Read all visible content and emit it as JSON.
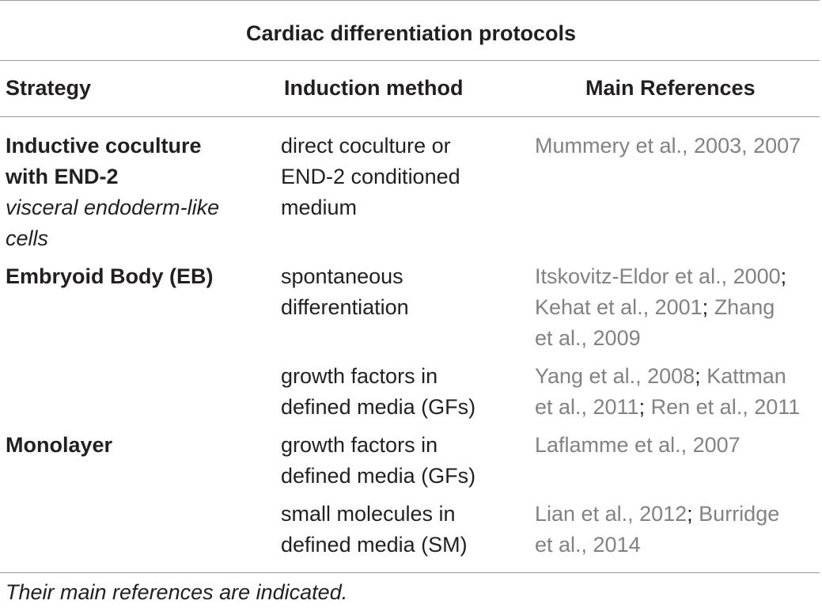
{
  "table": {
    "title": "Cardiac differentiation protocols",
    "columns": [
      "Strategy",
      "Induction method",
      "Main References"
    ],
    "rows": [
      {
        "strategy": {
          "name_lines": [
            "Inductive coculture",
            "with END-2"
          ],
          "subtitle_lines": [
            "visceral endoderm-like",
            "cells"
          ]
        },
        "method_lines": [
          "direct coculture or",
          "END-2 conditioned",
          "medium"
        ],
        "ref_lines": [
          [
            "Mummery et al., 2003, 2007"
          ]
        ]
      },
      {
        "strategy": {
          "name_lines": [
            "Embryoid Body (EB)"
          ]
        },
        "method_lines": [
          "spontaneous",
          "differentiation"
        ],
        "ref_lines": [
          [
            "Itskovitz-Eldor et al., 2000",
            ";"
          ],
          [
            "Kehat et al., 2001",
            "; ",
            "Zhang"
          ],
          [
            "et al., 2009"
          ]
        ]
      },
      {
        "strategy": {
          "name_lines": []
        },
        "method_lines": [
          "growth factors in",
          "defined media (GFs)"
        ],
        "ref_lines": [
          [
            "Yang et al., 2008",
            "; ",
            "Kattman"
          ],
          [
            "et al., 2011",
            "; ",
            "Ren et al., 2011"
          ]
        ]
      },
      {
        "strategy": {
          "name_lines": [
            "Monolayer"
          ]
        },
        "method_lines": [
          "growth factors in",
          "defined media (GFs)"
        ],
        "ref_lines": [
          [
            "Laflamme et al., 2007"
          ]
        ]
      },
      {
        "strategy": {
          "name_lines": []
        },
        "method_lines": [
          "small molecules in",
          "defined media (SM)"
        ],
        "ref_lines": [
          [
            "Lian et al., 2012",
            "; ",
            "Burridge"
          ],
          [
            "et al., 2014"
          ]
        ]
      }
    ],
    "footnote": "Their main references are indicated."
  },
  "colors": {
    "text": "#231f20",
    "reference_text": "#808285",
    "rule": "#9d9d9d"
  }
}
